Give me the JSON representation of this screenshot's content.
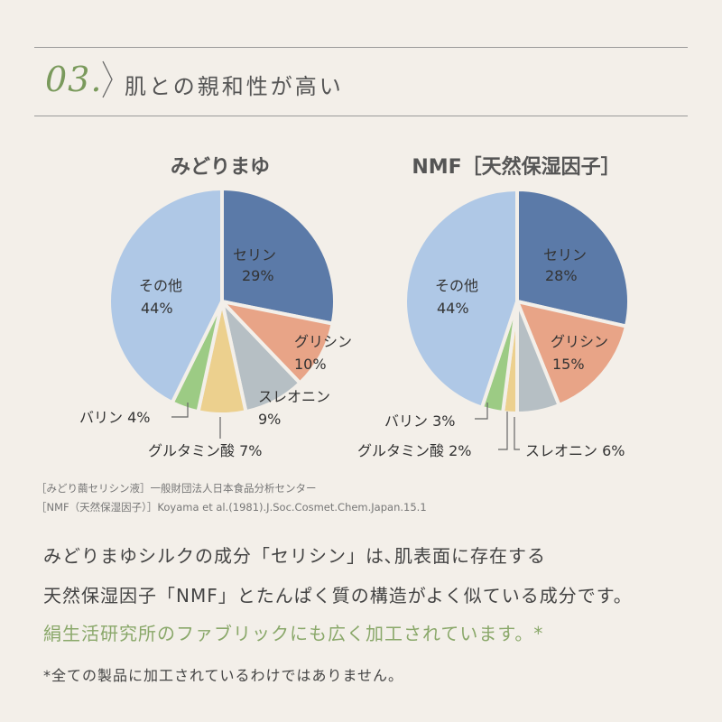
{
  "header": {
    "number": "03.",
    "title": "肌との親和性が高い"
  },
  "chart_data": [
    {
      "type": "pie",
      "title": "みどりまゆ",
      "slices": [
        {
          "label": "セリン",
          "value": 29,
          "value_label": "29%",
          "color": "#5b7aa8"
        },
        {
          "label": "グリシン",
          "value": 10,
          "value_label": "10%",
          "color": "#e8a487"
        },
        {
          "label": "スレオニン",
          "value": 9,
          "value_label": "9%",
          "color": "#b6bfc4"
        },
        {
          "label": "グルタミン酸",
          "value": 7,
          "value_label": "7%",
          "color": "#ecd08e"
        },
        {
          "label": "バリン",
          "value": 4,
          "value_label": "4%",
          "color": "#9ccb84"
        },
        {
          "label": "その他",
          "value": 44,
          "value_label": "44%",
          "color": "#afc8e6"
        }
      ]
    },
    {
      "type": "pie",
      "title": "NMF［天然保湿因子］",
      "slices": [
        {
          "label": "セリン",
          "value": 28,
          "value_label": "28%",
          "color": "#5b7aa8"
        },
        {
          "label": "グリシン",
          "value": 15,
          "value_label": "15%",
          "color": "#e8a487"
        },
        {
          "label": "スレオニン",
          "value": 6,
          "value_label": "6%",
          "color": "#b6bfc4"
        },
        {
          "label": "グルタミン酸",
          "value": 2,
          "value_label": "2%",
          "color": "#ecd08e"
        },
        {
          "label": "バリン",
          "value": 3,
          "value_label": "3%",
          "color": "#9ccb84"
        },
        {
          "label": "その他",
          "value": 44,
          "value_label": "44%",
          "color": "#afc8e6"
        }
      ]
    }
  ],
  "sources": [
    "［みどり繭セリシン液］一般財団法人日本食品分析センター",
    "［NMF（天然保湿因子）］Koyama et al.(1981).J.Soc.Cosmet.Chem.Japan.15.1"
  ],
  "body": {
    "line1": "みどりまゆシルクの成分「セリシン」は､肌表面に存在する",
    "line2": "天然保湿因子「NMF」とたんぱく質の構造がよく似ている成分です。",
    "line3": "絹生活研究所のファブリックにも広く加工されています。*"
  },
  "footnote": "*全ての製品に加工されているわけではありません。"
}
